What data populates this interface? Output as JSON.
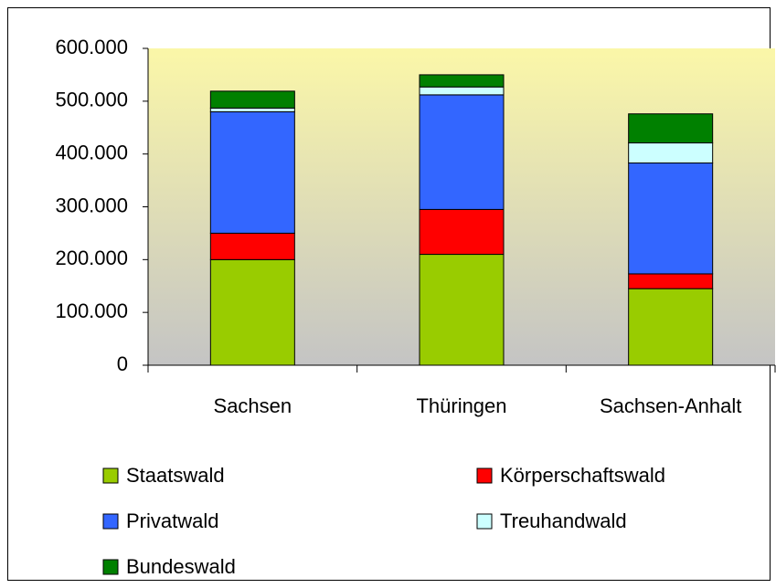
{
  "chart_data": {
    "type": "stacked_bar",
    "categories": [
      "Sachsen",
      "Thüringen",
      "Sachsen-Anhalt"
    ],
    "series": [
      {
        "name": "Staatswald",
        "color": "#99cc00",
        "values": [
          200000,
          210000,
          145000
        ]
      },
      {
        "name": "Körperschaftswald",
        "color": "#ff0000",
        "values": [
          50000,
          85000,
          28000
        ]
      },
      {
        "name": "Privatwald",
        "color": "#3366ff",
        "values": [
          230000,
          217000,
          210000
        ]
      },
      {
        "name": "Treuhandwald",
        "color": "#ccffff",
        "values": [
          7000,
          15000,
          38000
        ]
      },
      {
        "name": "Bundeswald",
        "color": "#008000",
        "values": [
          32000,
          23000,
          55000
        ]
      }
    ],
    "ylim": [
      0,
      600000
    ],
    "yticks": [
      0,
      {
        "value": 100000,
        "label": "100.000"
      },
      {
        "value": 200000,
        "label": "200.000"
      },
      {
        "value": 300000,
        "label": "300.000"
      },
      {
        "value": 400000,
        "label": "400.000"
      },
      {
        "value": 500000,
        "label": "500.000"
      },
      {
        "value": 600000,
        "label": "600.000"
      }
    ],
    "legend": "bottom"
  }
}
